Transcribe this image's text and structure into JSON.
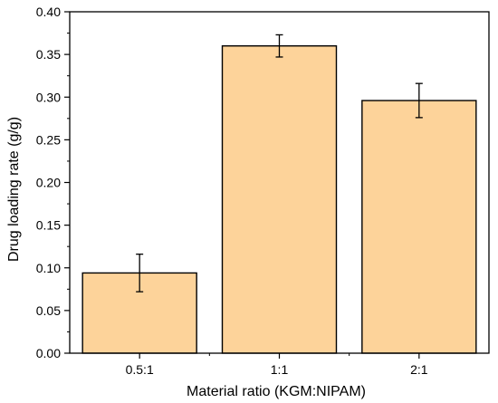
{
  "chart_data": {
    "type": "bar",
    "categories": [
      "0.5:1",
      "1:1",
      "2:1"
    ],
    "values": [
      0.094,
      0.36,
      0.296
    ],
    "error_bars": [
      0.022,
      0.013,
      0.02
    ],
    "xlabel": "Material ratio (KGM:NIPAM)",
    "ylabel": "Drug loading rate (g/g)",
    "ylim": [
      0.0,
      0.4
    ],
    "yticks": [
      "0.00",
      "0.05",
      "0.10",
      "0.15",
      "0.20",
      "0.25",
      "0.30",
      "0.35",
      "0.40"
    ],
    "grid": false,
    "bar_color": "#fdd39a",
    "bar_edge_color": "#000000"
  }
}
